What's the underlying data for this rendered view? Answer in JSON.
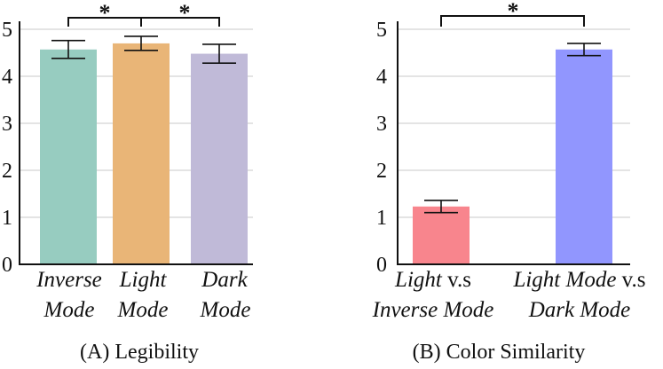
{
  "chart_data": [
    {
      "type": "bar",
      "caption": "(A) Legibility",
      "ylim": [
        0,
        5
      ],
      "yticks": [
        "0",
        "1",
        "2",
        "3",
        "4",
        "5"
      ],
      "categories": [
        {
          "line1": "Inverse",
          "line2": "Mode"
        },
        {
          "line1": "Light",
          "line2": "Mode"
        },
        {
          "line1": "Dark",
          "line2": "Mode"
        }
      ],
      "values": [
        4.57,
        4.7,
        4.48
      ],
      "errors": [
        0.19,
        0.15,
        0.2
      ],
      "colors": [
        "#97ccc0",
        "#e9b577",
        "#c0bad8"
      ],
      "significance": [
        {
          "from": 0,
          "to": 1,
          "label": "*"
        },
        {
          "from": 1,
          "to": 2,
          "label": "*"
        }
      ]
    },
    {
      "type": "bar",
      "caption": "(B) Color Similarity",
      "ylim": [
        0,
        5
      ],
      "yticks": [
        "0",
        "1",
        "2",
        "3",
        "4",
        "5"
      ],
      "categories": [
        {
          "line1": "Light",
          "line1_suffix": " v.s",
          "line2": "Inverse Mode"
        },
        {
          "line1": "Light Mode",
          "line1_suffix": " v.s",
          "line2": "Dark Mode"
        }
      ],
      "values": [
        1.23,
        4.57
      ],
      "errors": [
        0.13,
        0.13
      ],
      "colors": [
        "#f8858d",
        "#9196fe"
      ],
      "significance": [
        {
          "from": 0,
          "to": 1,
          "label": "*"
        }
      ]
    }
  ]
}
